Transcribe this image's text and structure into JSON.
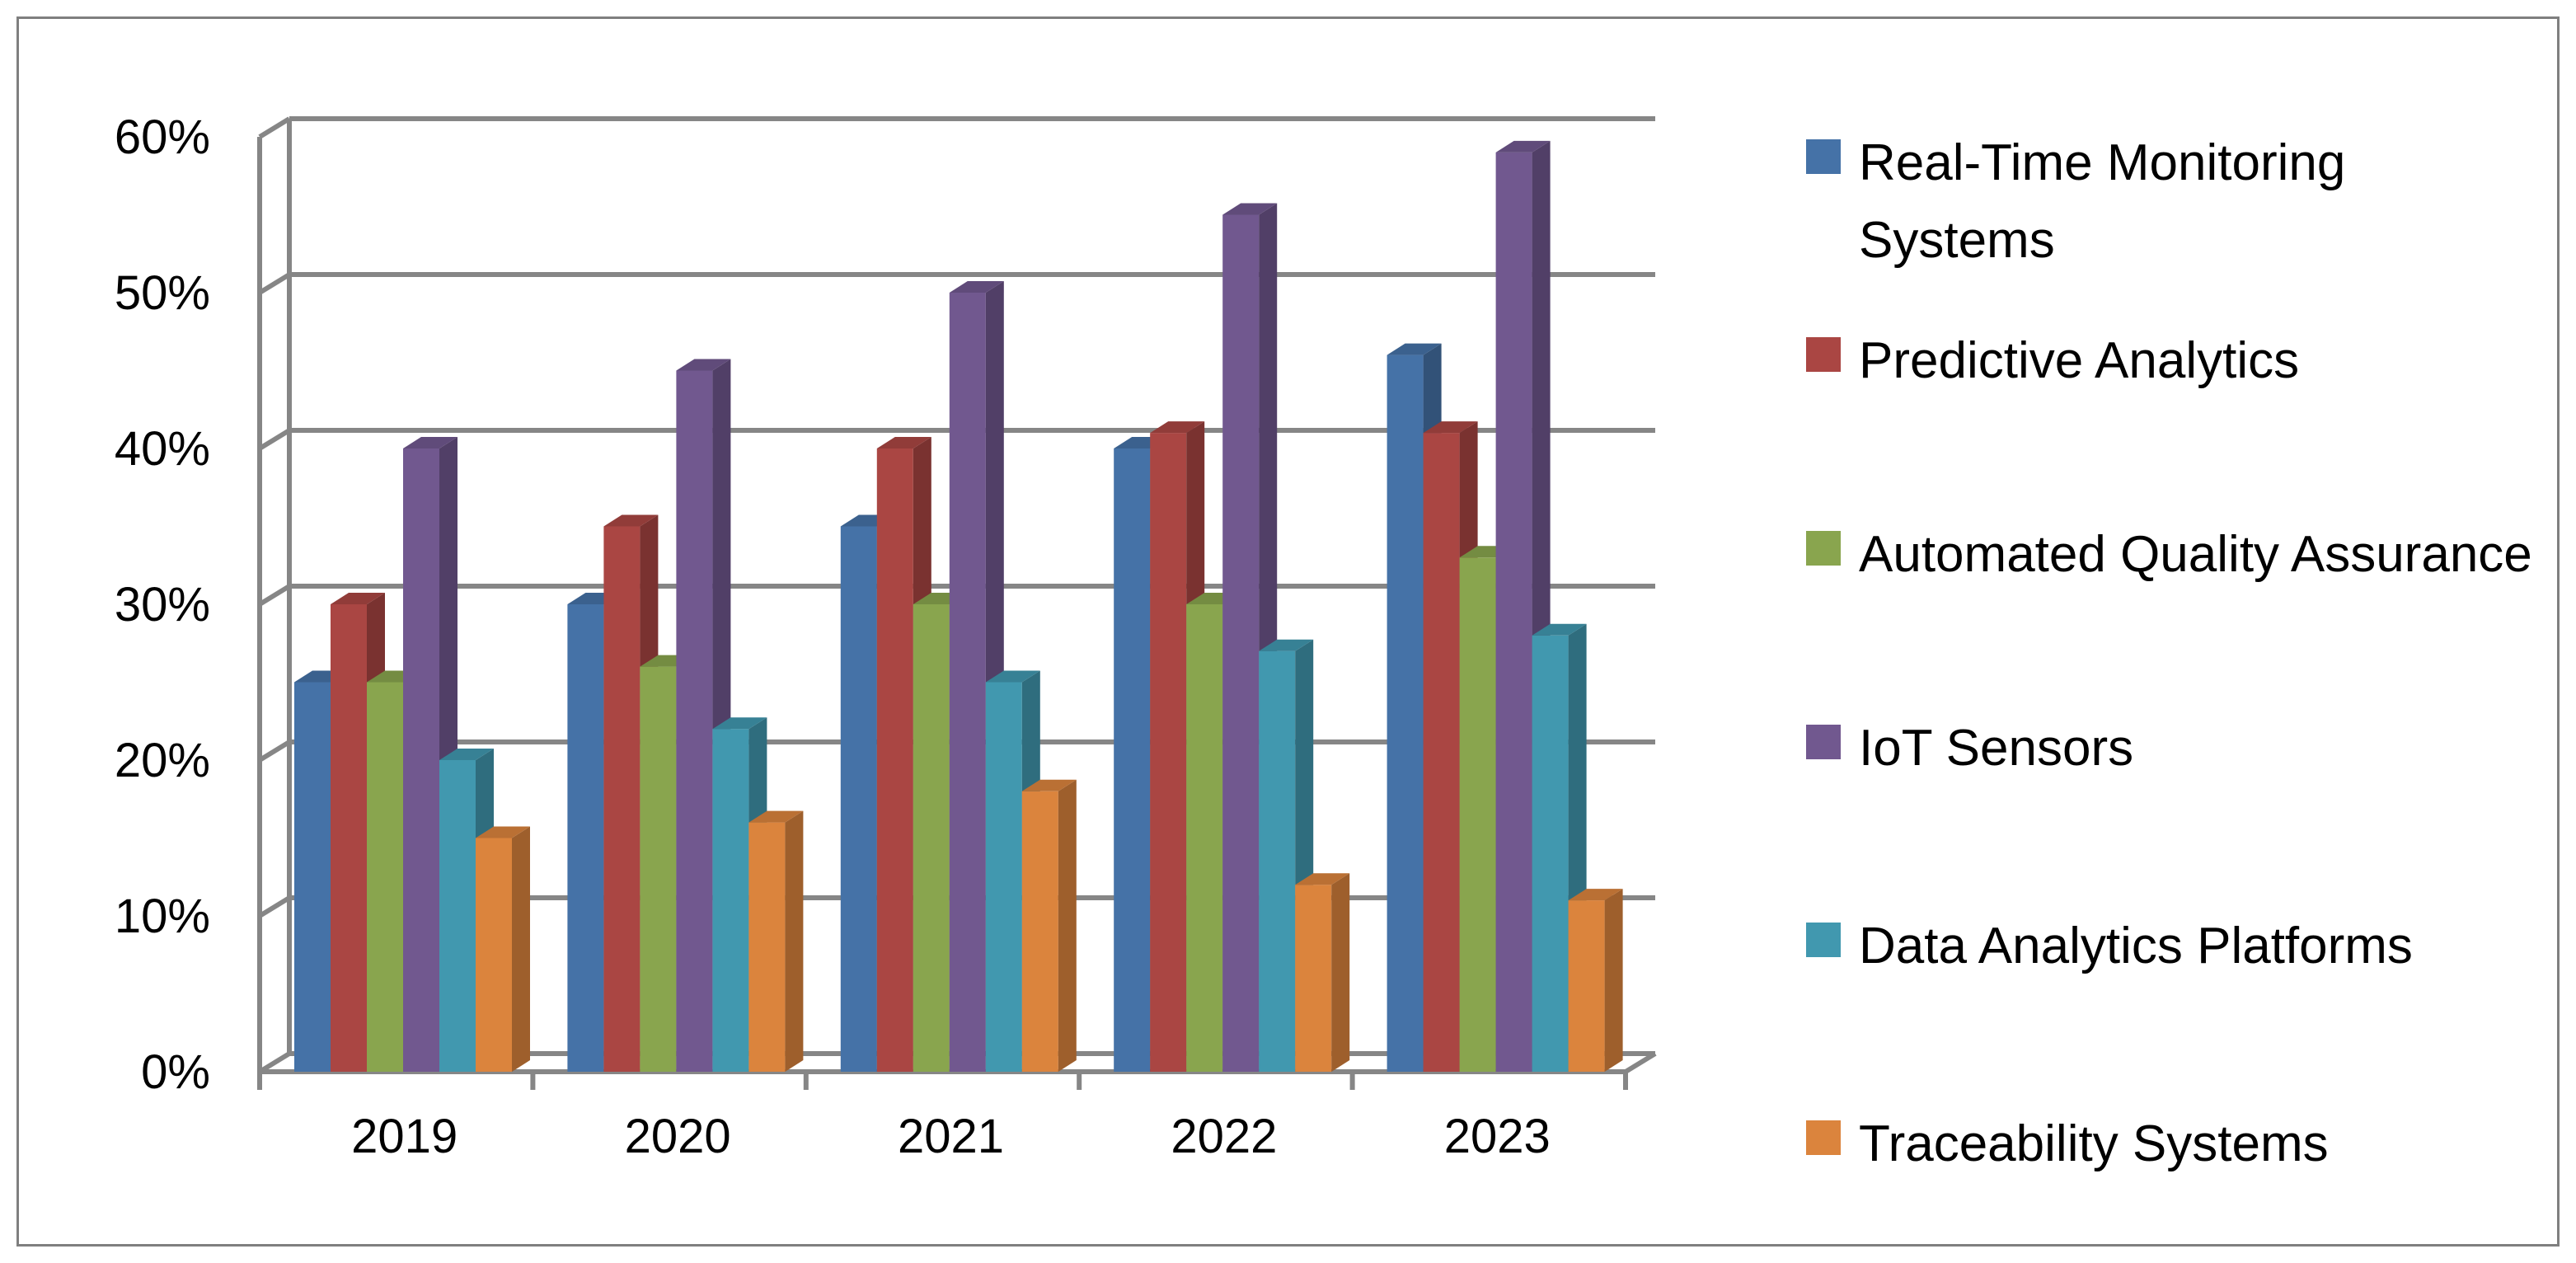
{
  "chart_data": {
    "type": "bar",
    "title": "",
    "xlabel": "",
    "ylabel": "",
    "ylim": [
      0,
      60
    ],
    "y_ticks": [
      "0%",
      "10%",
      "20%",
      "30%",
      "40%",
      "50%",
      "60%"
    ],
    "categories": [
      "2019",
      "2020",
      "2021",
      "2022",
      "2023"
    ],
    "series": [
      {
        "name": "Real-Time Monitoring Systems",
        "color": "#4572A7",
        "values": [
          25,
          30,
          35,
          40,
          46
        ]
      },
      {
        "name": "Predictive Analytics",
        "color": "#AA4643",
        "values": [
          30,
          35,
          40,
          41,
          41
        ]
      },
      {
        "name": "Automated Quality Assurance",
        "color": "#89A54E",
        "values": [
          25,
          26,
          30,
          30,
          33
        ]
      },
      {
        "name": "IoT Sensors",
        "color": "#71588F",
        "values": [
          40,
          45,
          50,
          55,
          59
        ]
      },
      {
        "name": "Data Analytics Platforms",
        "color": "#4198AF",
        "values": [
          20,
          22,
          25,
          27,
          28
        ]
      },
      {
        "name": "Traceability Systems",
        "color": "#DB843D",
        "values": [
          15,
          16,
          18,
          12,
          11
        ]
      }
    ],
    "legend_position": "right",
    "grid": true
  }
}
